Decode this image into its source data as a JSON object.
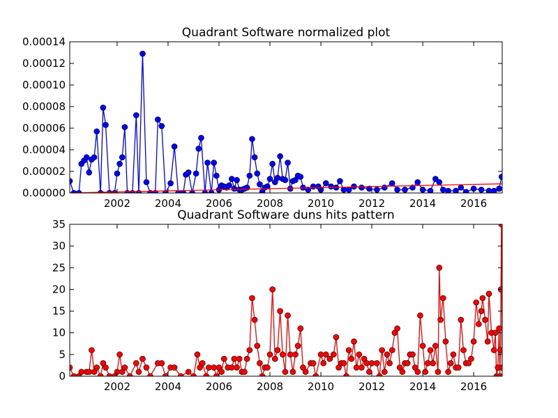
{
  "chart_data": [
    {
      "type": "line",
      "title": "Quadrant Software normalized plot",
      "x": [
        2000.14,
        2000.3,
        2000.5,
        2000.6,
        2000.7,
        2000.8,
        2000.9,
        2001.0,
        2001.1,
        2001.2,
        2001.35,
        2001.45,
        2001.55,
        2001.7,
        2001.9,
        2002.0,
        2002.1,
        2002.2,
        2002.3,
        2002.4,
        2002.6,
        2002.75,
        2002.85,
        2003.0,
        2003.15,
        2003.3,
        2003.5,
        2003.6,
        2003.75,
        2003.9,
        2004.1,
        2004.25,
        2004.4,
        2004.6,
        2004.7,
        2004.8,
        2004.95,
        2005.1,
        2005.2,
        2005.3,
        2005.45,
        2005.55,
        2005.7,
        2005.8,
        2005.9,
        2006.0,
        2006.1,
        2006.2,
        2006.3,
        2006.4,
        2006.5,
        2006.6,
        2006.7,
        2006.8,
        2006.9,
        2007.0,
        2007.1,
        2007.2,
        2007.3,
        2007.4,
        2007.5,
        2007.6,
        2007.7,
        2007.8,
        2007.9,
        2008.0,
        2008.1,
        2008.2,
        2008.3,
        2008.4,
        2008.5,
        2008.6,
        2008.7,
        2008.8,
        2008.9,
        2009.0,
        2009.1,
        2009.2,
        2009.3,
        2009.5,
        2009.7,
        2009.9,
        2010.0,
        2010.2,
        2010.4,
        2010.6,
        2010.75,
        2010.9,
        2011.1,
        2011.3,
        2011.6,
        2011.9,
        2012.2,
        2012.5,
        2012.8,
        2013.0,
        2013.3,
        2013.6,
        2013.8,
        2014.0,
        2014.3,
        2014.5,
        2014.65,
        2014.8,
        2015.0,
        2015.3,
        2015.5,
        2015.7,
        2016.0,
        2016.3,
        2016.6,
        2016.8,
        2017.0,
        2017.1
      ],
      "series": [
        {
          "color": "#0000ff",
          "markers": true,
          "values": [
            1.1e-05,
            0,
            0,
            2.7e-05,
            3e-05,
            3.3e-05,
            1.9e-05,
            3.1e-05,
            3.3e-05,
            5.7e-05,
            0,
            7.9e-05,
            6.3e-05,
            0,
            0,
            1.8e-05,
            2.7e-05,
            3.3e-05,
            6.1e-05,
            0,
            0,
            7.2e-05,
            0,
            0.000129,
            1e-05,
            0,
            0,
            6.8e-05,
            6.2e-05,
            0,
            9e-06,
            4.3e-05,
            0,
            0,
            1.7e-05,
            1.9e-05,
            0,
            1.8e-05,
            4.1e-05,
            5.1e-05,
            0,
            2.8e-05,
            0,
            2.8e-05,
            1.6e-05,
            3e-06,
            7e-06,
            6e-06,
            5e-06,
            7e-06,
            1.3e-05,
            4e-06,
            1.2e-05,
            3e-06,
            3e-06,
            4e-06,
            5e-06,
            1.6e-05,
            5e-05,
            3.3e-05,
            1.8e-05,
            8e-06,
            1e-06,
            5e-06,
            6e-06,
            1.3e-05,
            2.7e-05,
            1e-05,
            1.4e-05,
            3.4e-05,
            1.3e-05,
            1.2e-05,
            2.8e-05,
            4e-06,
            1.1e-05,
            1.2e-05,
            1.6e-05,
            1.5e-05,
            5e-06,
            3e-06,
            6e-06,
            6e-06,
            3e-06,
            9e-06,
            6e-06,
            5e-06,
            1.1e-05,
            3e-06,
            3e-06,
            6e-06,
            5e-06,
            4e-06,
            3e-06,
            5e-06,
            9e-06,
            3e-06,
            3e-06,
            5e-06,
            1e-05,
            3e-06,
            2e-06,
            1.3e-05,
            1e-05,
            3e-06,
            2e-06,
            2e-06,
            5e-06,
            1e-06,
            4e-06,
            3e-06,
            2e-06,
            2e-06,
            4e-06,
            1.5e-05
          ]
        },
        {
          "color": "#ff0000",
          "markers": false,
          "x": [
            2000.14,
            2017.12
          ],
          "values": [
            0,
            8.5e-06
          ]
        }
      ],
      "xlim": [
        2000.14,
        2017.12
      ],
      "xticks": [
        2002,
        2004,
        2006,
        2008,
        2010,
        2012,
        2014,
        2016
      ],
      "ylim": [
        0,
        0.00014
      ],
      "yticks": [
        {
          "value": 0,
          "label": "0.00000"
        },
        {
          "value": 2e-05,
          "label": "0.00002"
        },
        {
          "value": 4e-05,
          "label": "0.00004"
        },
        {
          "value": 6e-05,
          "label": "0.00006"
        },
        {
          "value": 8e-05,
          "label": "0.00008"
        },
        {
          "value": 0.0001,
          "label": "0.00010"
        },
        {
          "value": 0.00012,
          "label": "0.00012"
        },
        {
          "value": 0.00014,
          "label": "0.00014"
        }
      ],
      "grid": false
    },
    {
      "type": "line",
      "title": "Quadrant Software duns hits pattern",
      "x": [
        2000.14,
        2000.3,
        2000.5,
        2000.6,
        2000.8,
        2000.9,
        2001.0,
        2001.1,
        2001.2,
        2001.35,
        2001.45,
        2001.55,
        2001.7,
        2001.9,
        2002.0,
        2002.1,
        2002.2,
        2002.3,
        2002.5,
        2002.75,
        2002.85,
        2003.0,
        2003.15,
        2003.3,
        2003.6,
        2003.75,
        2003.9,
        2004.1,
        2004.25,
        2004.5,
        2004.8,
        2005.0,
        2005.15,
        2005.25,
        2005.35,
        2005.5,
        2005.6,
        2005.8,
        2005.9,
        2006.0,
        2006.1,
        2006.2,
        2006.35,
        2006.5,
        2006.6,
        2006.7,
        2006.8,
        2006.9,
        2007.0,
        2007.1,
        2007.2,
        2007.3,
        2007.4,
        2007.5,
        2007.6,
        2007.7,
        2007.8,
        2007.9,
        2008.0,
        2008.1,
        2008.2,
        2008.3,
        2008.4,
        2008.5,
        2008.6,
        2008.7,
        2008.8,
        2008.9,
        2009.0,
        2009.1,
        2009.2,
        2009.3,
        2009.4,
        2009.6,
        2009.7,
        2009.8,
        2010.0,
        2010.1,
        2010.2,
        2010.35,
        2010.5,
        2010.6,
        2010.7,
        2010.8,
        2010.9,
        2011.0,
        2011.1,
        2011.2,
        2011.3,
        2011.4,
        2011.5,
        2011.6,
        2011.7,
        2011.8,
        2011.9,
        2012.0,
        2012.2,
        2012.3,
        2012.4,
        2012.5,
        2012.6,
        2012.7,
        2012.8,
        2012.9,
        2013.0,
        2013.1,
        2013.2,
        2013.3,
        2013.4,
        2013.5,
        2013.6,
        2013.7,
        2013.8,
        2013.9,
        2014.0,
        2014.1,
        2014.2,
        2014.3,
        2014.4,
        2014.5,
        2014.6,
        2014.65,
        2014.7,
        2014.8,
        2014.9,
        2015.0,
        2015.1,
        2015.2,
        2015.3,
        2015.4,
        2015.5,
        2015.6,
        2015.7,
        2015.8,
        2015.9,
        2016.0,
        2016.1,
        2016.2,
        2016.3,
        2016.35,
        2016.45,
        2016.55,
        2016.6,
        2016.7,
        2016.8,
        2016.85,
        2016.9,
        2016.95,
        2017.0,
        2017.03,
        2017.05,
        2017.07,
        2017.09,
        2017.12
      ],
      "series": [
        {
          "color": "#ff0000",
          "markers": true,
          "values": [
            2,
            0,
            0,
            1,
            1,
            1,
            6,
            1,
            2,
            0,
            3,
            2,
            0,
            0,
            1,
            5,
            1,
            2,
            0,
            3,
            1,
            4,
            2,
            0,
            3,
            3,
            0,
            2,
            2,
            0,
            1,
            0,
            5,
            2,
            3,
            0,
            2,
            2,
            0,
            2,
            1,
            4,
            2,
            2,
            4,
            2,
            4,
            1,
            1,
            4,
            6,
            18,
            13,
            7,
            3,
            0,
            2,
            2,
            5,
            20,
            4,
            6,
            15,
            5,
            1,
            14,
            5,
            1,
            5,
            7,
            11,
            2,
            1,
            3,
            3,
            0,
            5,
            3,
            5,
            4,
            5,
            9,
            2,
            3,
            3,
            0,
            6,
            4,
            8,
            2,
            5,
            2,
            4,
            3,
            1,
            3,
            3,
            0,
            6,
            1,
            5,
            3,
            6,
            10,
            11,
            2,
            1,
            3,
            3,
            5,
            5,
            2,
            1,
            14,
            7,
            1,
            3,
            6,
            3,
            7,
            1,
            25,
            13,
            18,
            8,
            1,
            3,
            5,
            2,
            2,
            13,
            6,
            3,
            3,
            4,
            8,
            17,
            12,
            15,
            18,
            13,
            8,
            19,
            10,
            6,
            10,
            0,
            2,
            11,
            0,
            6,
            20,
            35,
            2
          ]
        }
      ],
      "xlim": [
        2000.14,
        2017.12
      ],
      "xticks": [
        2002,
        2004,
        2006,
        2008,
        2010,
        2012,
        2014,
        2016
      ],
      "ylim": [
        0,
        35
      ],
      "yticks": [
        0,
        5,
        10,
        15,
        20,
        25,
        30,
        35
      ],
      "grid": false
    }
  ]
}
